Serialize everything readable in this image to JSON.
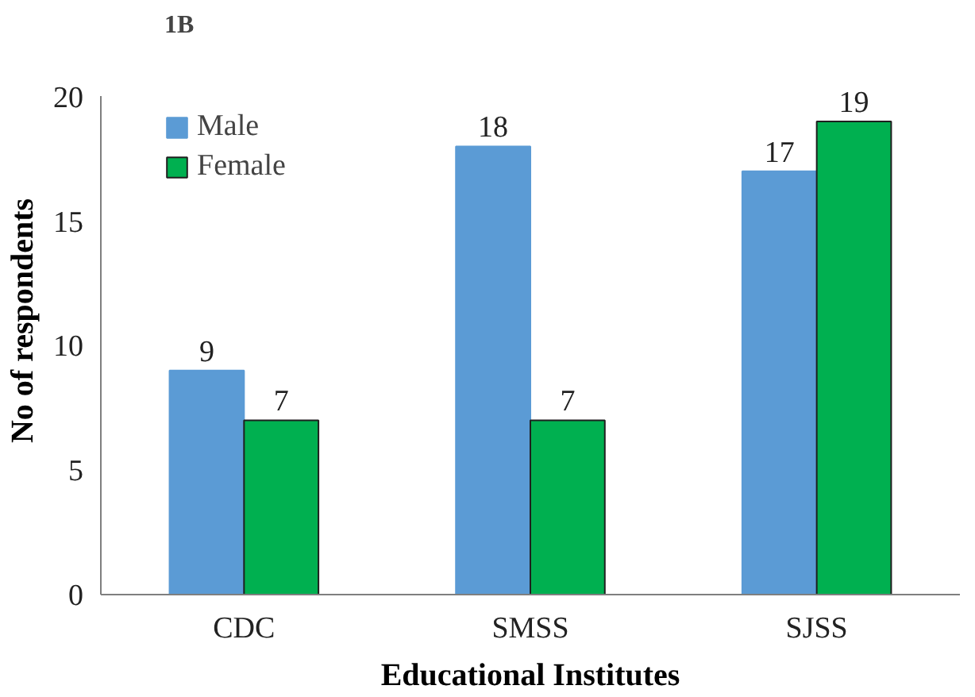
{
  "chart_data": {
    "type": "bar",
    "title": "1B",
    "xlabel": "Educational Institutes",
    "ylabel": "No of respondents",
    "categories": [
      "CDC",
      "SMSS",
      "SJSS"
    ],
    "series": [
      {
        "name": "Male",
        "color": "#5b9bd5",
        "values": [
          9,
          18,
          17
        ]
      },
      {
        "name": "Female",
        "color": "#00b050",
        "values": [
          7,
          7,
          19
        ]
      }
    ],
    "ylim": [
      0,
      20
    ],
    "yticks": [
      0,
      5,
      10,
      15,
      20
    ],
    "grid": false,
    "legend": "top left",
    "data_labels": true
  }
}
